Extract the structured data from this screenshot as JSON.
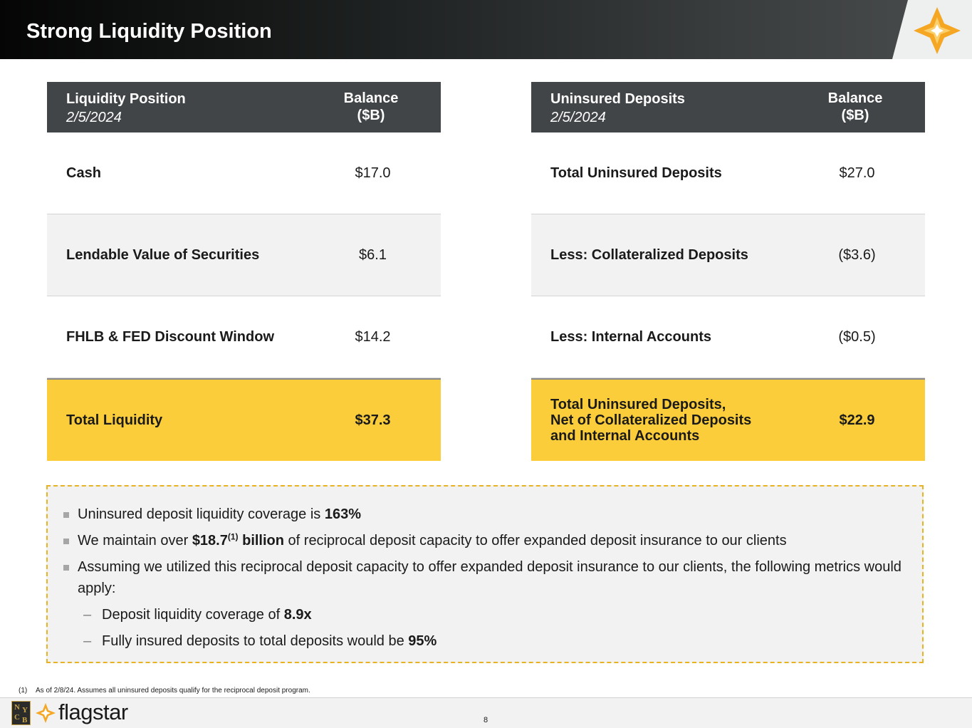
{
  "header": {
    "title": "Strong Liquidity Position"
  },
  "liquidity_table": {
    "header_label": "Liquidity Position",
    "header_date": "2/5/2024",
    "header_balance_line1": "Balance",
    "header_balance_line2": "($B)",
    "rows": [
      {
        "label": "Cash",
        "value": "$17.0"
      },
      {
        "label": "Lendable Value of Securities",
        "value": "$6.1"
      },
      {
        "label": "FHLB & FED Discount Window",
        "value": "$14.2"
      }
    ],
    "total": {
      "label": "Total Liquidity",
      "value": "$37.3"
    }
  },
  "uninsured_table": {
    "header_label": "Uninsured Deposits",
    "header_date": "2/5/2024",
    "header_balance_line1": "Balance",
    "header_balance_line2": "($B)",
    "rows": [
      {
        "label": "Total Uninsured Deposits",
        "value": "$27.0"
      },
      {
        "label": "Less: Collateralized Deposits",
        "value": "($3.6)"
      },
      {
        "label": "Less: Internal Accounts",
        "value": "($0.5)"
      }
    ],
    "total": {
      "label_line1": "Total Uninsured Deposits,",
      "label_line2": "Net of Collateralized Deposits",
      "label_line3": "and Internal Accounts",
      "value": "$22.9"
    }
  },
  "callout": {
    "b1_text": "Uninsured deposit liquidity coverage is ",
    "b1_bold": "163%",
    "b2_pre": "We maintain over ",
    "b2_bold": "$18.7",
    "b2_sup": "(1)",
    "b2_bold2": " billion",
    "b2_post": " of reciprocal deposit capacity to offer expanded deposit insurance to our clients",
    "b3_text": "Assuming we utilized this reciprocal deposit capacity to offer expanded deposit insurance to our clients, the following metrics would apply:",
    "s1_text": "Deposit liquidity coverage of ",
    "s1_bold": "8.9x",
    "s2_text": "Fully insured deposits to total deposits would be ",
    "s2_bold": "95%"
  },
  "footnote": {
    "number": "(1)",
    "text": "As of 2/8/24. Assumes all uninsured deposits qualify for the reciprocal deposit program."
  },
  "footer": {
    "brand": "flagstar",
    "nycb_letters": [
      "N",
      "Y",
      "C",
      "B"
    ],
    "page_number": "8"
  },
  "colors": {
    "header_dark": "#414547",
    "accent_yellow": "#fccd3a",
    "brand_orange": "#f5a623",
    "callout_border": "#e8b320"
  }
}
